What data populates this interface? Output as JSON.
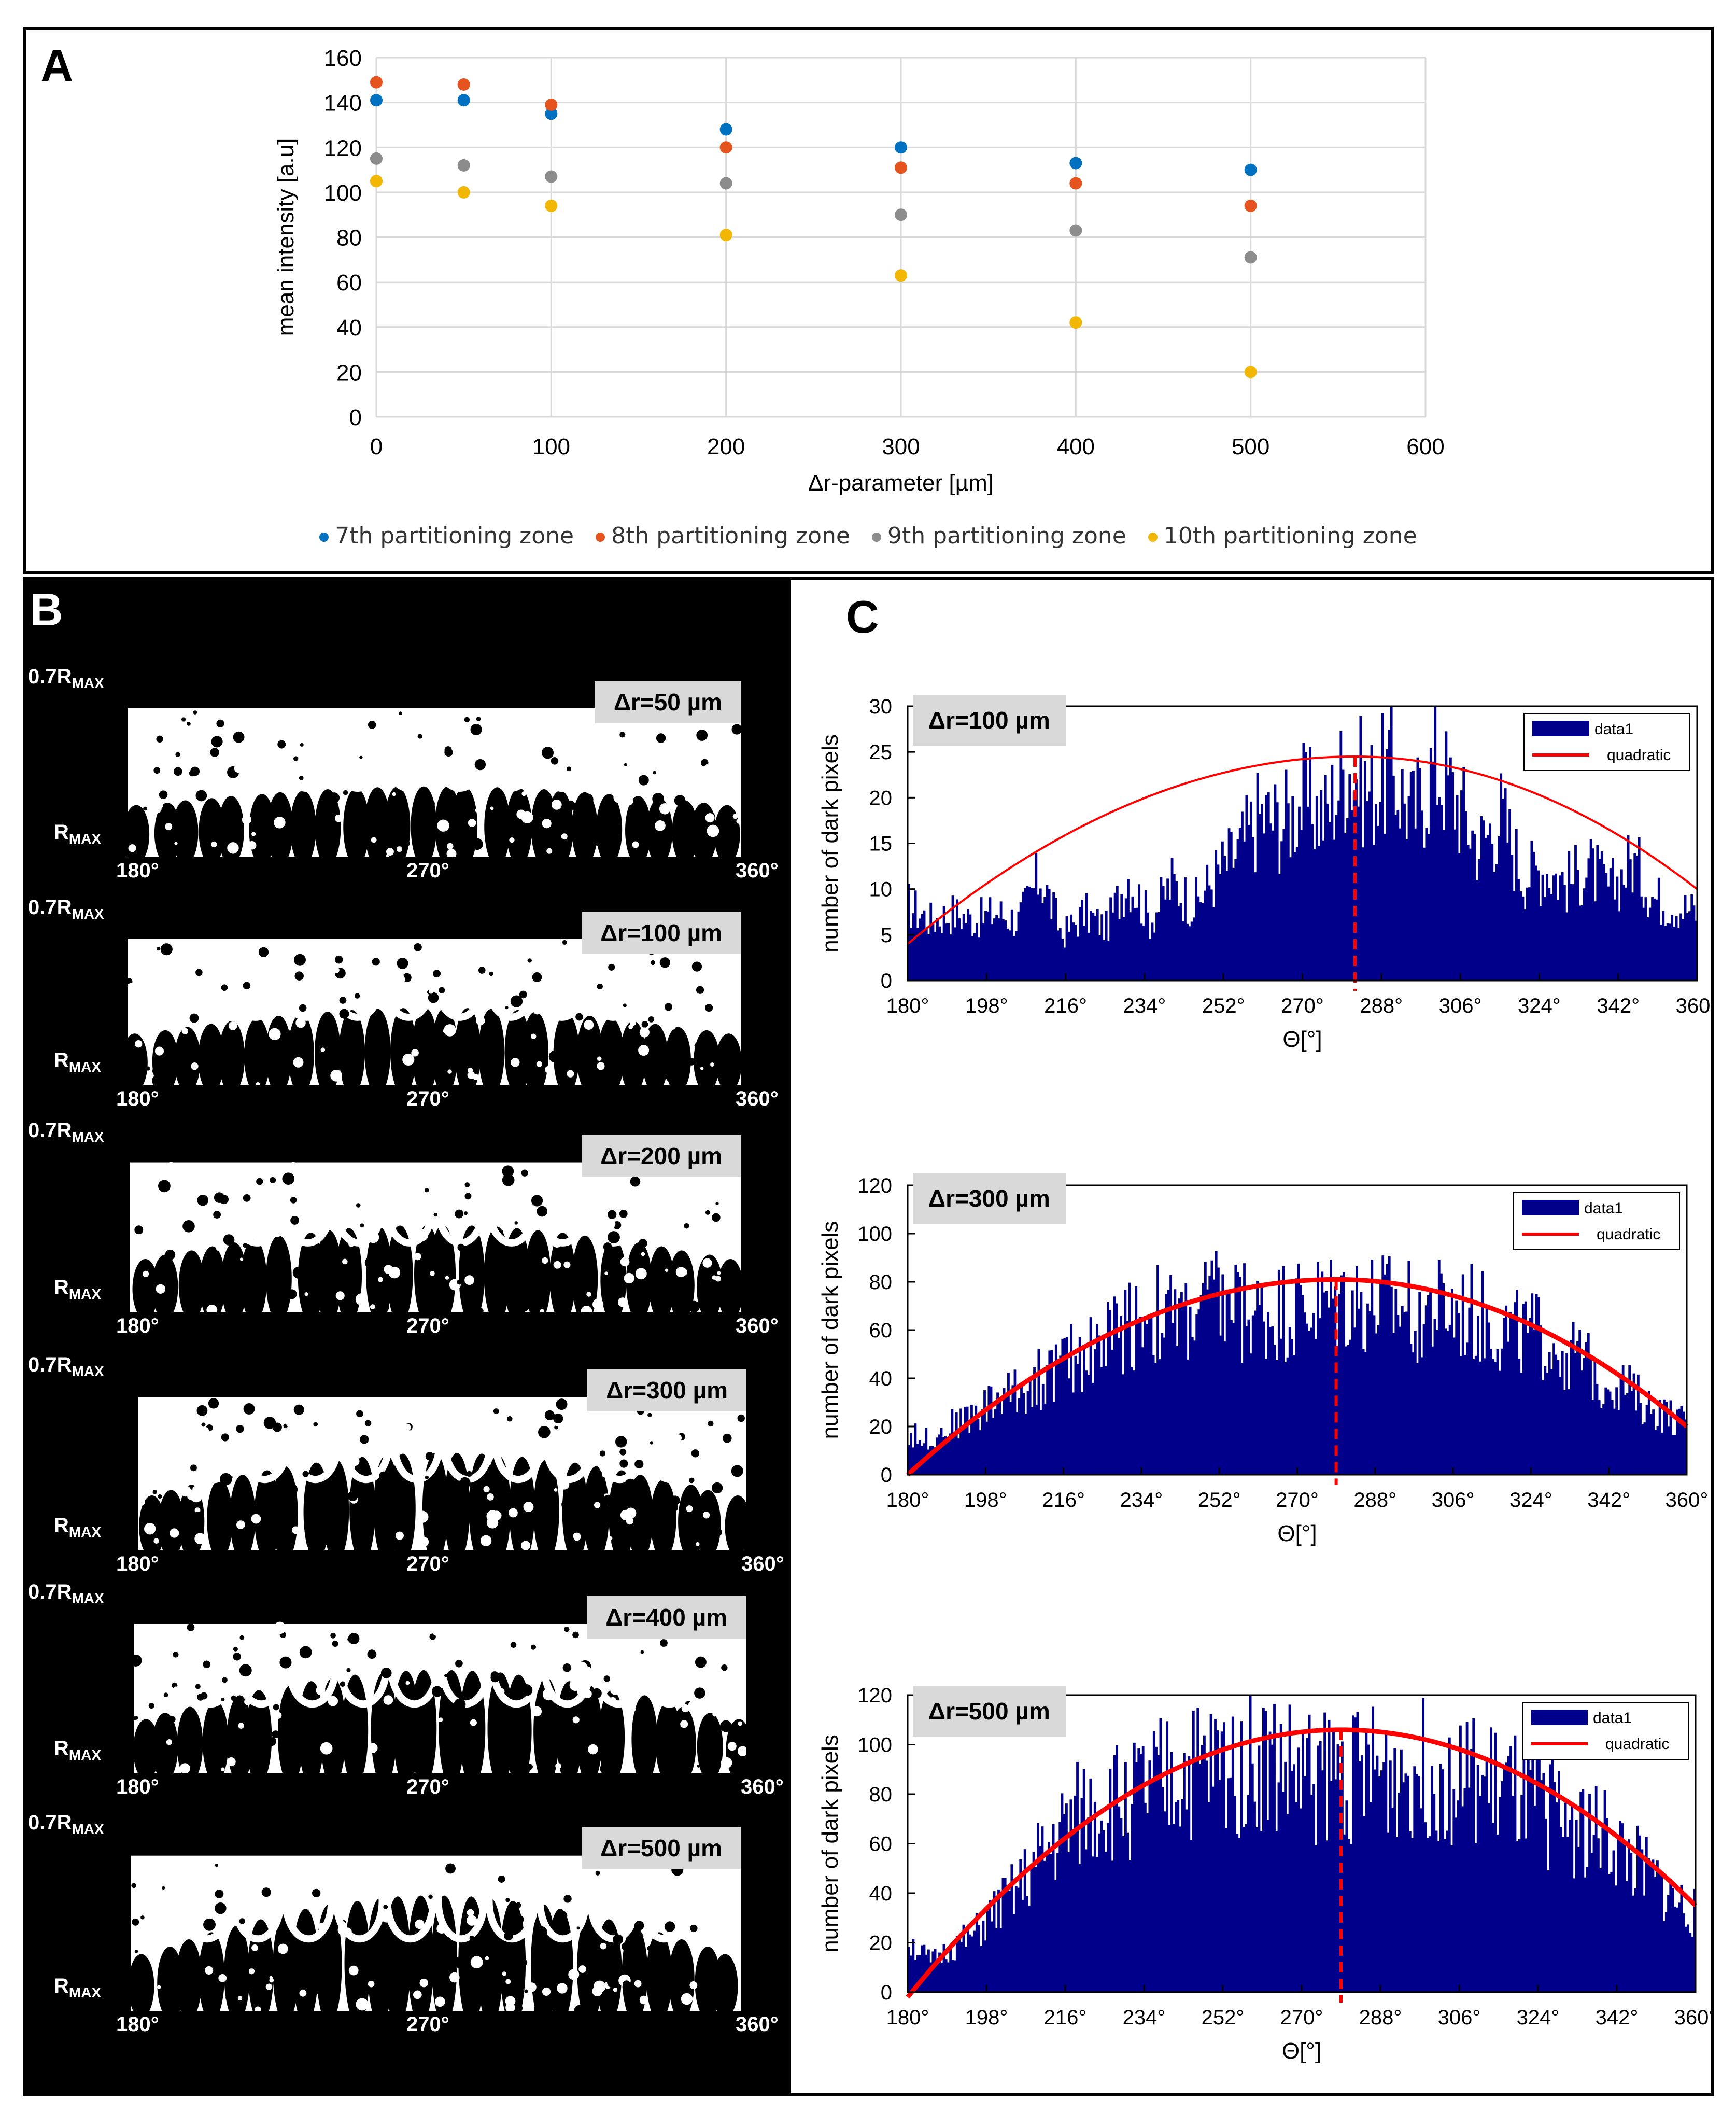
{
  "panels": {
    "a_letter": "A",
    "b_letter": "B",
    "c_letter": "C"
  },
  "chart_data": [
    {
      "type": "scatter",
      "panel": "A",
      "title": "",
      "xlabel": "Δr-parameter  [µm]",
      "ylabel": "mean intensity [a.u]",
      "xlim": [
        0,
        600
      ],
      "ylim": [
        0,
        160
      ],
      "xticks": [
        0,
        100,
        200,
        300,
        400,
        500,
        600
      ],
      "yticks": [
        0,
        20,
        40,
        60,
        80,
        100,
        120,
        140,
        160
      ],
      "grid": true,
      "legend_position": "bottom",
      "x": [
        0,
        50,
        100,
        200,
        300,
        400,
        500
      ],
      "series": [
        {
          "name": "7th partitioning zone",
          "color": "#0070c0",
          "values": [
            141,
            141,
            135,
            128,
            120,
            113,
            110
          ]
        },
        {
          "name": "8th partitioning zone",
          "color": "#e5541e",
          "values": [
            149,
            148,
            139,
            120,
            111,
            104,
            94
          ]
        },
        {
          "name": "9th partitioning zone",
          "color": "#8c8c8c",
          "values": [
            115,
            112,
            107,
            104,
            90,
            83,
            71
          ]
        },
        {
          "name": "10th partitioning zone",
          "color": "#f2b705",
          "values": [
            105,
            100,
            94,
            81,
            63,
            42,
            20
          ]
        }
      ]
    },
    {
      "type": "bar",
      "panel": "C",
      "label": "Δr=100 µm",
      "xlabel": "Θ[°]",
      "ylabel": "number of dark pixels",
      "xlim": [
        180,
        360
      ],
      "ylim": [
        0,
        30
      ],
      "yticks": [
        0,
        5,
        10,
        15,
        20,
        25,
        30
      ],
      "xticks": [
        "180°",
        "198°",
        "216°",
        "234°",
        "252°",
        "270°",
        "288°",
        "306°",
        "324°",
        "342°",
        "360°"
      ],
      "legend_position": "top-right",
      "legend": [
        "data1",
        "quadratic"
      ],
      "fit_vertex": [
        282,
        24.5
      ],
      "fit_ends": [
        4,
        10
      ],
      "envelope": [
        [
          180,
          10
        ],
        [
          185,
          8
        ],
        [
          190,
          9
        ],
        [
          195,
          8
        ],
        [
          200,
          9
        ],
        [
          205,
          8
        ],
        [
          210,
          14
        ],
        [
          215,
          6
        ],
        [
          220,
          9
        ],
        [
          225,
          7
        ],
        [
          230,
          14
        ],
        [
          235,
          8
        ],
        [
          240,
          13
        ],
        [
          245,
          10
        ],
        [
          250,
          14
        ],
        [
          255,
          17
        ],
        [
          260,
          22
        ],
        [
          265,
          21
        ],
        [
          270,
          24
        ],
        [
          275,
          22
        ],
        [
          280,
          29
        ],
        [
          285,
          25
        ],
        [
          290,
          28
        ],
        [
          295,
          22
        ],
        [
          300,
          29
        ],
        [
          305,
          24
        ],
        [
          310,
          18
        ],
        [
          315,
          22
        ],
        [
          320,
          14
        ],
        [
          325,
          15
        ],
        [
          330,
          13
        ],
        [
          335,
          15
        ],
        [
          340,
          12
        ],
        [
          345,
          16
        ],
        [
          350,
          11
        ],
        [
          355,
          10
        ],
        [
          360,
          9
        ]
      ]
    },
    {
      "type": "bar",
      "panel": "C",
      "label": "Δr=300 µm",
      "xlabel": "Θ[°]",
      "ylabel": "number of dark pixels",
      "xlim": [
        180,
        360
      ],
      "ylim": [
        0,
        120
      ],
      "yticks": [
        0,
        20,
        40,
        60,
        80,
        100,
        120
      ],
      "xticks": [
        "180°",
        "198°",
        "216°",
        "234°",
        "252°",
        "270°",
        "288°",
        "306°",
        "324°",
        "342°",
        "360°"
      ],
      "legend_position": "top-right",
      "legend": [
        "data1",
        "quadratic"
      ],
      "fit_vertex": [
        279,
        81
      ],
      "fit_ends": [
        0,
        20
      ],
      "envelope": [
        [
          180,
          20
        ],
        [
          185,
          18
        ],
        [
          190,
          25
        ],
        [
          195,
          30
        ],
        [
          200,
          38
        ],
        [
          205,
          42
        ],
        [
          210,
          48
        ],
        [
          215,
          55
        ],
        [
          220,
          60
        ],
        [
          225,
          68
        ],
        [
          230,
          76
        ],
        [
          235,
          82
        ],
        [
          240,
          78
        ],
        [
          245,
          80
        ],
        [
          250,
          88
        ],
        [
          255,
          85
        ],
        [
          260,
          80
        ],
        [
          265,
          82
        ],
        [
          270,
          84
        ],
        [
          275,
          85
        ],
        [
          280,
          88
        ],
        [
          285,
          86
        ],
        [
          290,
          85
        ],
        [
          295,
          84
        ],
        [
          300,
          83
        ],
        [
          305,
          82
        ],
        [
          310,
          80
        ],
        [
          315,
          76
        ],
        [
          320,
          70
        ],
        [
          325,
          70
        ],
        [
          330,
          65
        ],
        [
          335,
          58
        ],
        [
          340,
          50
        ],
        [
          345,
          45
        ],
        [
          350,
          35
        ],
        [
          355,
          30
        ],
        [
          360,
          25
        ]
      ]
    },
    {
      "type": "bar",
      "panel": "C",
      "label": "Δr=500 µm",
      "xlabel": "Θ[°]",
      "ylabel": "number of dark pixels",
      "xlim": [
        180,
        360
      ],
      "ylim": [
        0,
        120
      ],
      "yticks": [
        0,
        20,
        40,
        60,
        80,
        100,
        120
      ],
      "xticks": [
        "180°",
        "198°",
        "216°",
        "234°",
        "252°",
        "270°",
        "288°",
        "306°",
        "324°",
        "342°",
        "360°"
      ],
      "legend_position": "top-right",
      "legend": [
        "data1",
        "quadratic"
      ],
      "fit_vertex": [
        279,
        106
      ],
      "fit_ends": [
        -2,
        35
      ],
      "envelope": [
        [
          180,
          25
        ],
        [
          185,
          15
        ],
        [
          190,
          22
        ],
        [
          195,
          28
        ],
        [
          200,
          40
        ],
        [
          205,
          50
        ],
        [
          210,
          65
        ],
        [
          215,
          78
        ],
        [
          220,
          88
        ],
        [
          225,
          92
        ],
        [
          230,
          95
        ],
        [
          235,
          98
        ],
        [
          240,
          104
        ],
        [
          245,
          108
        ],
        [
          250,
          110
        ],
        [
          255,
          112
        ],
        [
          260,
          114
        ],
        [
          265,
          110
        ],
        [
          270,
          106
        ],
        [
          275,
          107
        ],
        [
          280,
          108
        ],
        [
          285,
          107
        ],
        [
          290,
          108
        ],
        [
          295,
          110
        ],
        [
          300,
          108
        ],
        [
          305,
          105
        ],
        [
          310,
          102
        ],
        [
          315,
          100
        ],
        [
          320,
          95
        ],
        [
          325,
          90
        ],
        [
          330,
          86
        ],
        [
          335,
          80
        ],
        [
          340,
          75
        ],
        [
          345,
          65
        ],
        [
          350,
          55
        ],
        [
          355,
          45
        ],
        [
          360,
          38
        ]
      ]
    }
  ],
  "panel_b": {
    "top_label": "0.7R",
    "bottom_label": "R",
    "sub": "MAX",
    "x_start": "180°",
    "x_mid": "270°",
    "x_end": "360°",
    "strips": [
      {
        "label": "Δr=50 µm",
        "dark": 0.25
      },
      {
        "label": "Δr=100 µm",
        "dark": 0.35
      },
      {
        "label": "Δr=200 µm",
        "dark": 0.45
      },
      {
        "label": "Δr=300 µm",
        "dark": 0.55
      },
      {
        "label": "Δr=400 µm",
        "dark": 0.65
      },
      {
        "label": "Δr=500 µm",
        "dark": 0.75
      }
    ]
  },
  "colors": {
    "bars": "#00008b",
    "fit": "#ff0000",
    "grid": "#d9d9d9"
  }
}
